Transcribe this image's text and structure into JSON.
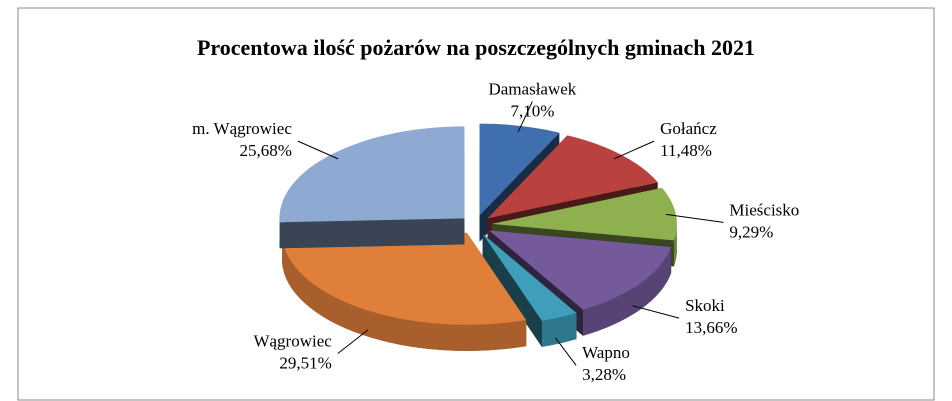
{
  "chart_data": {
    "type": "pie",
    "title": "Procentowa ilość pożarów na poszczególnych gminach 2021",
    "categories": [
      "Damasławek",
      "Gołańcz",
      "Mieścisko",
      "Skoki",
      "Wapno",
      "Wągrowiec",
      "m. Wągrowiec"
    ],
    "values": [
      7.1,
      11.48,
      9.29,
      13.66,
      3.28,
      29.51,
      25.68
    ],
    "value_labels": [
      "7,10%",
      "11,48%",
      "9,29%",
      "13,66%",
      "3,28%",
      "29,51%",
      "25,68%"
    ],
    "colors": [
      "#3f6fae",
      "#b9423f",
      "#8fb04f",
      "#755a9b",
      "#3f9fba",
      "#e07f3a",
      "#8eaad3"
    ]
  }
}
